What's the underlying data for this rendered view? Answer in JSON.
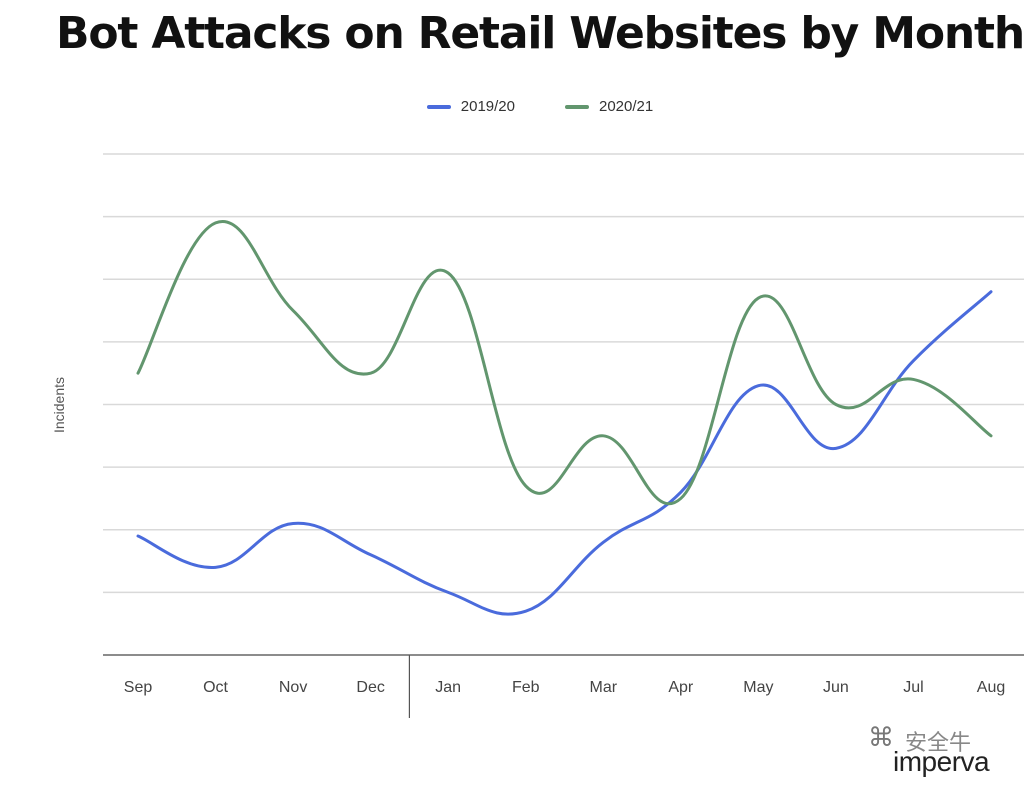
{
  "title": "Bot Attacks on Retail Websites by Month",
  "legend": [
    {
      "label": "2019/20",
      "color": "#4a6bdc"
    },
    {
      "label": "2020/21",
      "color": "#62966e"
    }
  ],
  "watermark": {
    "wechat_text": "安全牛",
    "brand": "imperva",
    "icon": "wechat-icon"
  },
  "chart_data": {
    "type": "line",
    "title": "Bot Attacks on Retail Websites by Month",
    "xlabel": "",
    "ylabel": "Incidents",
    "categories": [
      "Sep",
      "Oct",
      "Nov",
      "Dec",
      "Jan",
      "Feb",
      "Mar",
      "Apr",
      "May",
      "Jun",
      "Jul",
      "Aug"
    ],
    "ylim": [
      0,
      8
    ],
    "grid": true,
    "y_tick_labels_shown": false,
    "legend_position": "top",
    "series": [
      {
        "name": "2019/20",
        "color": "#4a6bdc",
        "values": [
          1.9,
          1.4,
          2.1,
          1.6,
          1.0,
          0.7,
          1.8,
          2.6,
          4.3,
          3.3,
          4.7,
          5.8
        ]
      },
      {
        "name": "2020/21",
        "color": "#62966e",
        "values": [
          4.5,
          6.9,
          5.5,
          4.5,
          6.1,
          2.7,
          3.5,
          2.5,
          5.7,
          4.0,
          4.4,
          3.5
        ]
      }
    ]
  }
}
